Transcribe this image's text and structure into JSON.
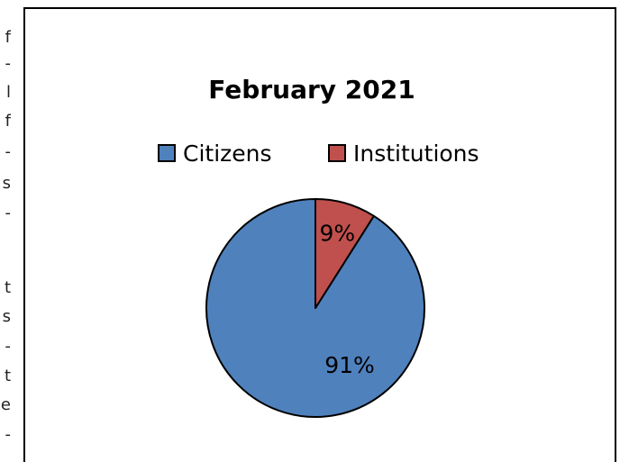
{
  "edge_text": {
    "characters": [
      "f",
      "-",
      "l",
      "f",
      "-",
      "s",
      "-",
      "t",
      "s",
      "-",
      "t",
      "e",
      "-"
    ]
  },
  "chart_data": {
    "type": "pie",
    "title": "February 2021",
    "legend_position": "top",
    "categories": [
      "Citizens",
      "Institutions"
    ],
    "values": [
      91,
      9
    ],
    "labels": [
      "91%",
      "9%"
    ],
    "colors": [
      "#4F81BD",
      "#C0504D"
    ],
    "start": "top",
    "direction": "counterclockwise"
  }
}
